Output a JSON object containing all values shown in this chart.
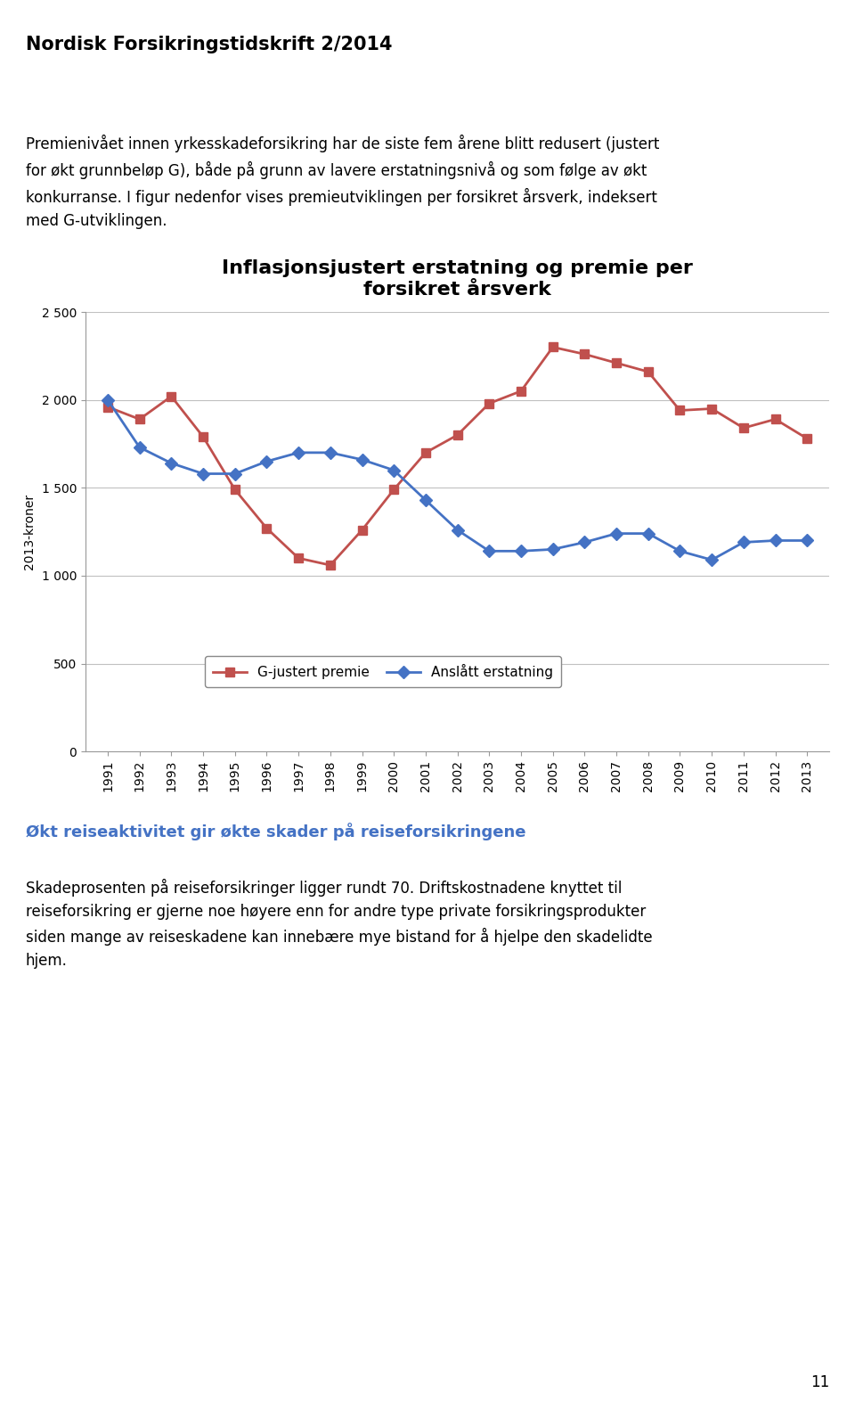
{
  "title": "Inflasjonsjustert erstatning og premie per\nforsikret årsverk",
  "header": "Nordisk Forsikringstidskrift 2/2014",
  "intro_text": "Premienivået innen yrkesskadeforsikring har de siste fem årene blitt redusert (justert\nfor økt grunnbeløp G), både på grunn av lavere erstatningsnivå og som følge av økt\nkonkurranse. I figur nedenfor vises premieutviklingen per forsikret årsverk, indeksert\nmed G-utviklingen.",
  "footer_heading": "Økt reiseaktivitet gir økte skader på reiseforsikringene",
  "footer_text": "Skadeprosenten på reiseforsikringer ligger rundt 70. Driftskostnadene knyttet til\nreiseforsikring er gjerne noe høyere enn for andre type private forsikringsprodukter\nsiden mange av reiseskadene kan innebære mye bistand for å hjelpe den skadelidte\nhjem.",
  "page_number": "11",
  "years": [
    1991,
    1992,
    1993,
    1994,
    1995,
    1996,
    1997,
    1998,
    1999,
    2000,
    2001,
    2002,
    2003,
    2004,
    2005,
    2006,
    2007,
    2008,
    2009,
    2010,
    2011,
    2012,
    2013
  ],
  "anslatt": [
    2000,
    1730,
    1640,
    1580,
    1580,
    1650,
    1700,
    1700,
    1660,
    1600,
    1430,
    1260,
    1140,
    1140,
    1150,
    1190,
    1240,
    1240,
    1140,
    1090,
    1190,
    1200,
    1200
  ],
  "gjustert": [
    1960,
    1890,
    2020,
    1790,
    1490,
    1270,
    1100,
    1060,
    1260,
    1490,
    1700,
    1800,
    1980,
    2050,
    2300,
    2260,
    2210,
    2160,
    1940,
    1950,
    1840,
    1890,
    1780
  ],
  "anslatt_color": "#4472C4",
  "gjustert_color": "#C0504D",
  "ylabel": "2013-kroner",
  "ylim": [
    0,
    2500
  ],
  "yticks": [
    0,
    500,
    1000,
    1500,
    2000,
    2500
  ],
  "ytick_labels": [
    "0",
    "500",
    "1 000",
    "1 500",
    "2 000",
    "2 500"
  ],
  "legend_anslatt": "Anslått erstatning",
  "legend_gjustert": "G-justert premie",
  "bg_color": "#FFFFFF",
  "chart_bg_color": "#FFFFFF",
  "grid_color": "#C0C0C0",
  "title_fontsize": 16,
  "axis_fontsize": 10,
  "legend_fontsize": 11,
  "header_fontsize": 15,
  "intro_fontsize": 12,
  "footer_heading_fontsize": 13,
  "footer_text_fontsize": 12
}
